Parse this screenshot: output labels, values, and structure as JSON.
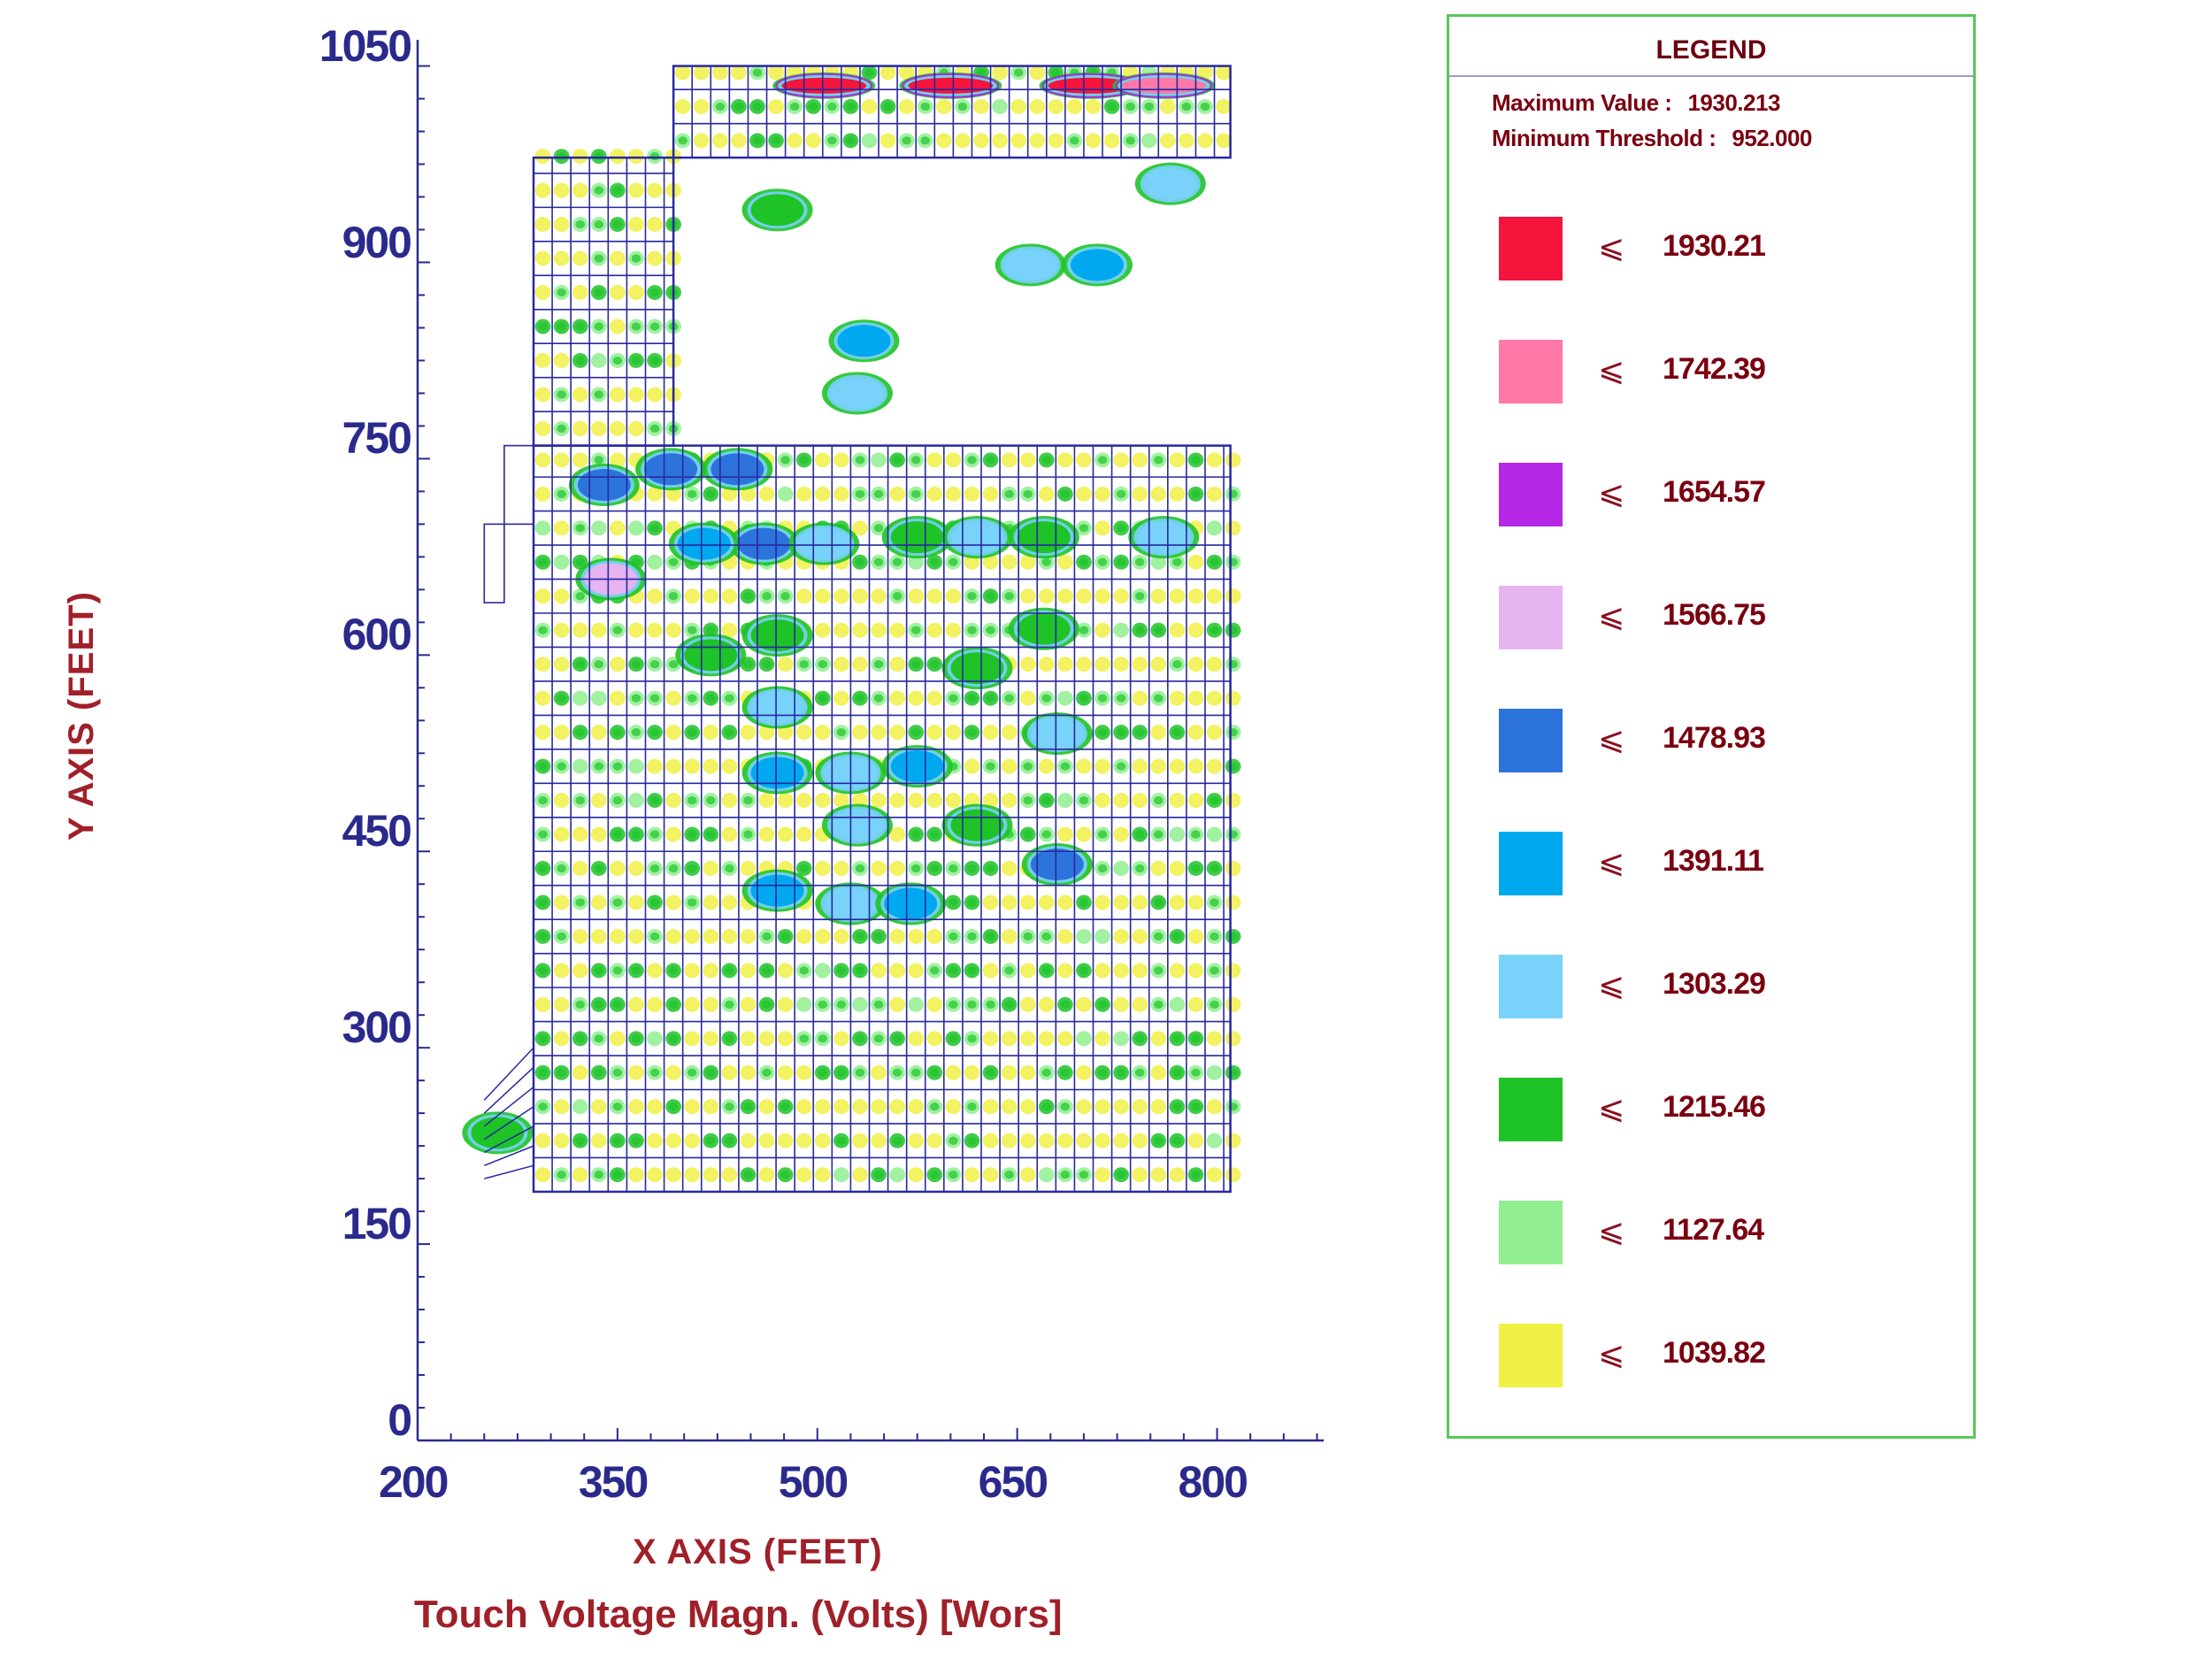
{
  "chart_data": {
    "type": "heatmap",
    "title": "",
    "caption": "Touch Voltage Magn. (Volts) [Wors]",
    "xlabel": "X AXIS   (FEET)",
    "ylabel": "Y AXIS   (FEET)",
    "xlim": [
      200,
      880
    ],
    "ylim": [
      0,
      1070
    ],
    "xticks": [
      200,
      350,
      500,
      650,
      800
    ],
    "yticks": [
      0,
      150,
      300,
      450,
      600,
      750,
      900,
      1050
    ],
    "x_tick_labels": [
      "200",
      "350",
      "500",
      "650",
      "800"
    ],
    "y_tick_labels": [
      "0",
      "150",
      "300",
      "450",
      "600",
      "750",
      "900",
      "1050"
    ],
    "grid_region": {
      "main": {
        "x": [
          392,
          810
        ],
        "y": [
          980,
          1050
        ]
      },
      "upper_left": {
        "x": [
          287,
          392
        ],
        "y": [
          760,
          980
        ]
      },
      "full": {
        "x": [
          287,
          810
        ],
        "y": [
          190,
          760
        ]
      }
    },
    "grid_spacing": {
      "x": 14,
      "y": 26
    },
    "hotspots": [
      {
        "x": 505,
        "y": 1035,
        "level": "1930.21"
      },
      {
        "x": 600,
        "y": 1035,
        "level": "1930.21"
      },
      {
        "x": 705,
        "y": 1035,
        "level": "1930.21"
      },
      {
        "x": 760,
        "y": 1035,
        "level": "1742.39"
      },
      {
        "x": 345,
        "y": 658,
        "level": "1566.75"
      },
      {
        "x": 470,
        "y": 940,
        "level": "1215.46"
      },
      {
        "x": 535,
        "y": 840,
        "level": "1391.11"
      },
      {
        "x": 530,
        "y": 800,
        "level": "1303.29"
      },
      {
        "x": 340,
        "y": 730,
        "level": "1478.93"
      },
      {
        "x": 390,
        "y": 742,
        "level": "1478.93"
      },
      {
        "x": 440,
        "y": 742,
        "level": "1478.93"
      },
      {
        "x": 460,
        "y": 685,
        "level": "1478.93"
      },
      {
        "x": 415,
        "y": 685,
        "level": "1391.11"
      },
      {
        "x": 505,
        "y": 685,
        "level": "1303.29"
      },
      {
        "x": 575,
        "y": 690,
        "level": "1215.46"
      },
      {
        "x": 620,
        "y": 690,
        "level": "1303.29"
      },
      {
        "x": 670,
        "y": 690,
        "level": "1215.46"
      },
      {
        "x": 710,
        "y": 898,
        "level": "1391.11"
      },
      {
        "x": 660,
        "y": 898,
        "level": "1303.29"
      },
      {
        "x": 765,
        "y": 960,
        "level": "1303.29"
      },
      {
        "x": 470,
        "y": 615,
        "level": "1215.46"
      },
      {
        "x": 470,
        "y": 560,
        "level": "1303.29"
      },
      {
        "x": 470,
        "y": 510,
        "level": "1391.11"
      },
      {
        "x": 525,
        "y": 510,
        "level": "1303.29"
      },
      {
        "x": 575,
        "y": 515,
        "level": "1391.11"
      },
      {
        "x": 680,
        "y": 540,
        "level": "1303.29"
      },
      {
        "x": 530,
        "y": 470,
        "level": "1303.29"
      },
      {
        "x": 680,
        "y": 440,
        "level": "1478.93"
      },
      {
        "x": 470,
        "y": 420,
        "level": "1391.11"
      },
      {
        "x": 525,
        "y": 410,
        "level": "1303.29"
      },
      {
        "x": 570,
        "y": 410,
        "level": "1391.11"
      },
      {
        "x": 420,
        "y": 600,
        "level": "1215.46"
      },
      {
        "x": 620,
        "y": 470,
        "level": "1215.46"
      },
      {
        "x": 620,
        "y": 590,
        "level": "1215.46"
      },
      {
        "x": 670,
        "y": 620,
        "level": "1215.46"
      },
      {
        "x": 760,
        "y": 690,
        "level": "1303.29"
      },
      {
        "x": 260,
        "y": 235,
        "level": "1215.46"
      }
    ],
    "legend": {
      "title": "LEGEND",
      "max_label": "Maximum Value :",
      "max_value": "1930.213",
      "min_label": "Minimum Threshold :",
      "min_value": "952.000",
      "symbol": "⩽",
      "levels": [
        {
          "value": "1930.21",
          "color": "#f5143c"
        },
        {
          "value": "1742.39",
          "color": "#ff78a8"
        },
        {
          "value": "1654.57",
          "color": "#b428e6"
        },
        {
          "value": "1566.75",
          "color": "#e6b4f0"
        },
        {
          "value": "1478.93",
          "color": "#2d73dc"
        },
        {
          "value": "1391.11",
          "color": "#00a8f0"
        },
        {
          "value": "1303.29",
          "color": "#78d2fa"
        },
        {
          "value": "1215.46",
          "color": "#1ec328"
        },
        {
          "value": "1127.64",
          "color": "#90ee90"
        },
        {
          "value": "1039.82",
          "color": "#f0f046"
        }
      ]
    },
    "legend_position": "right",
    "grid_color": "#2828a0",
    "axis_color": "#2a2a8c"
  }
}
